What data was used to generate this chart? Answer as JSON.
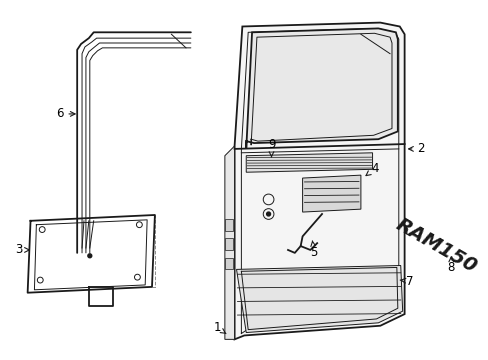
{
  "bg_color": "#ffffff",
  "line_color": "#1a1a1a",
  "label_color": "#000000",
  "label_font_size": 8.5,
  "figsize": [
    4.89,
    3.6
  ],
  "dpi": 100
}
